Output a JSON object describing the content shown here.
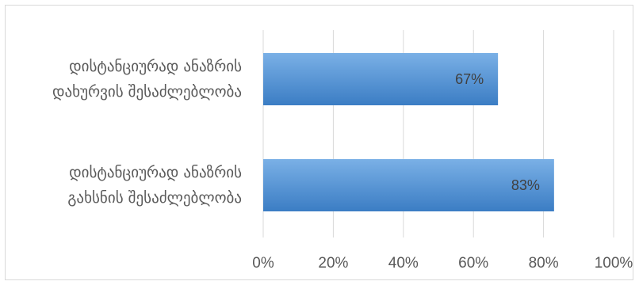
{
  "chart_data": {
    "type": "bar",
    "orientation": "horizontal",
    "categories": [
      [
        "დისტანციურად ანაზრის",
        "დახურვის შესაძლებლობა"
      ],
      [
        "დისტანციურად ანაზრის",
        "გახსნის შესაძლებლობა"
      ]
    ],
    "values": [
      0.67,
      0.83
    ],
    "data_labels": [
      "67%",
      "83%"
    ],
    "xlim": [
      0,
      1
    ],
    "x_ticks": [
      0,
      0.2,
      0.4,
      0.6,
      0.8,
      1.0
    ],
    "x_tick_labels": [
      "0%",
      "20%",
      "40%",
      "60%",
      "80%",
      "100%"
    ],
    "grid": "vertical",
    "legend": "none",
    "bar_color_top": "#7ab0e6",
    "bar_color_bottom": "#3b7dc4",
    "grid_color": "#d9d9d9"
  }
}
